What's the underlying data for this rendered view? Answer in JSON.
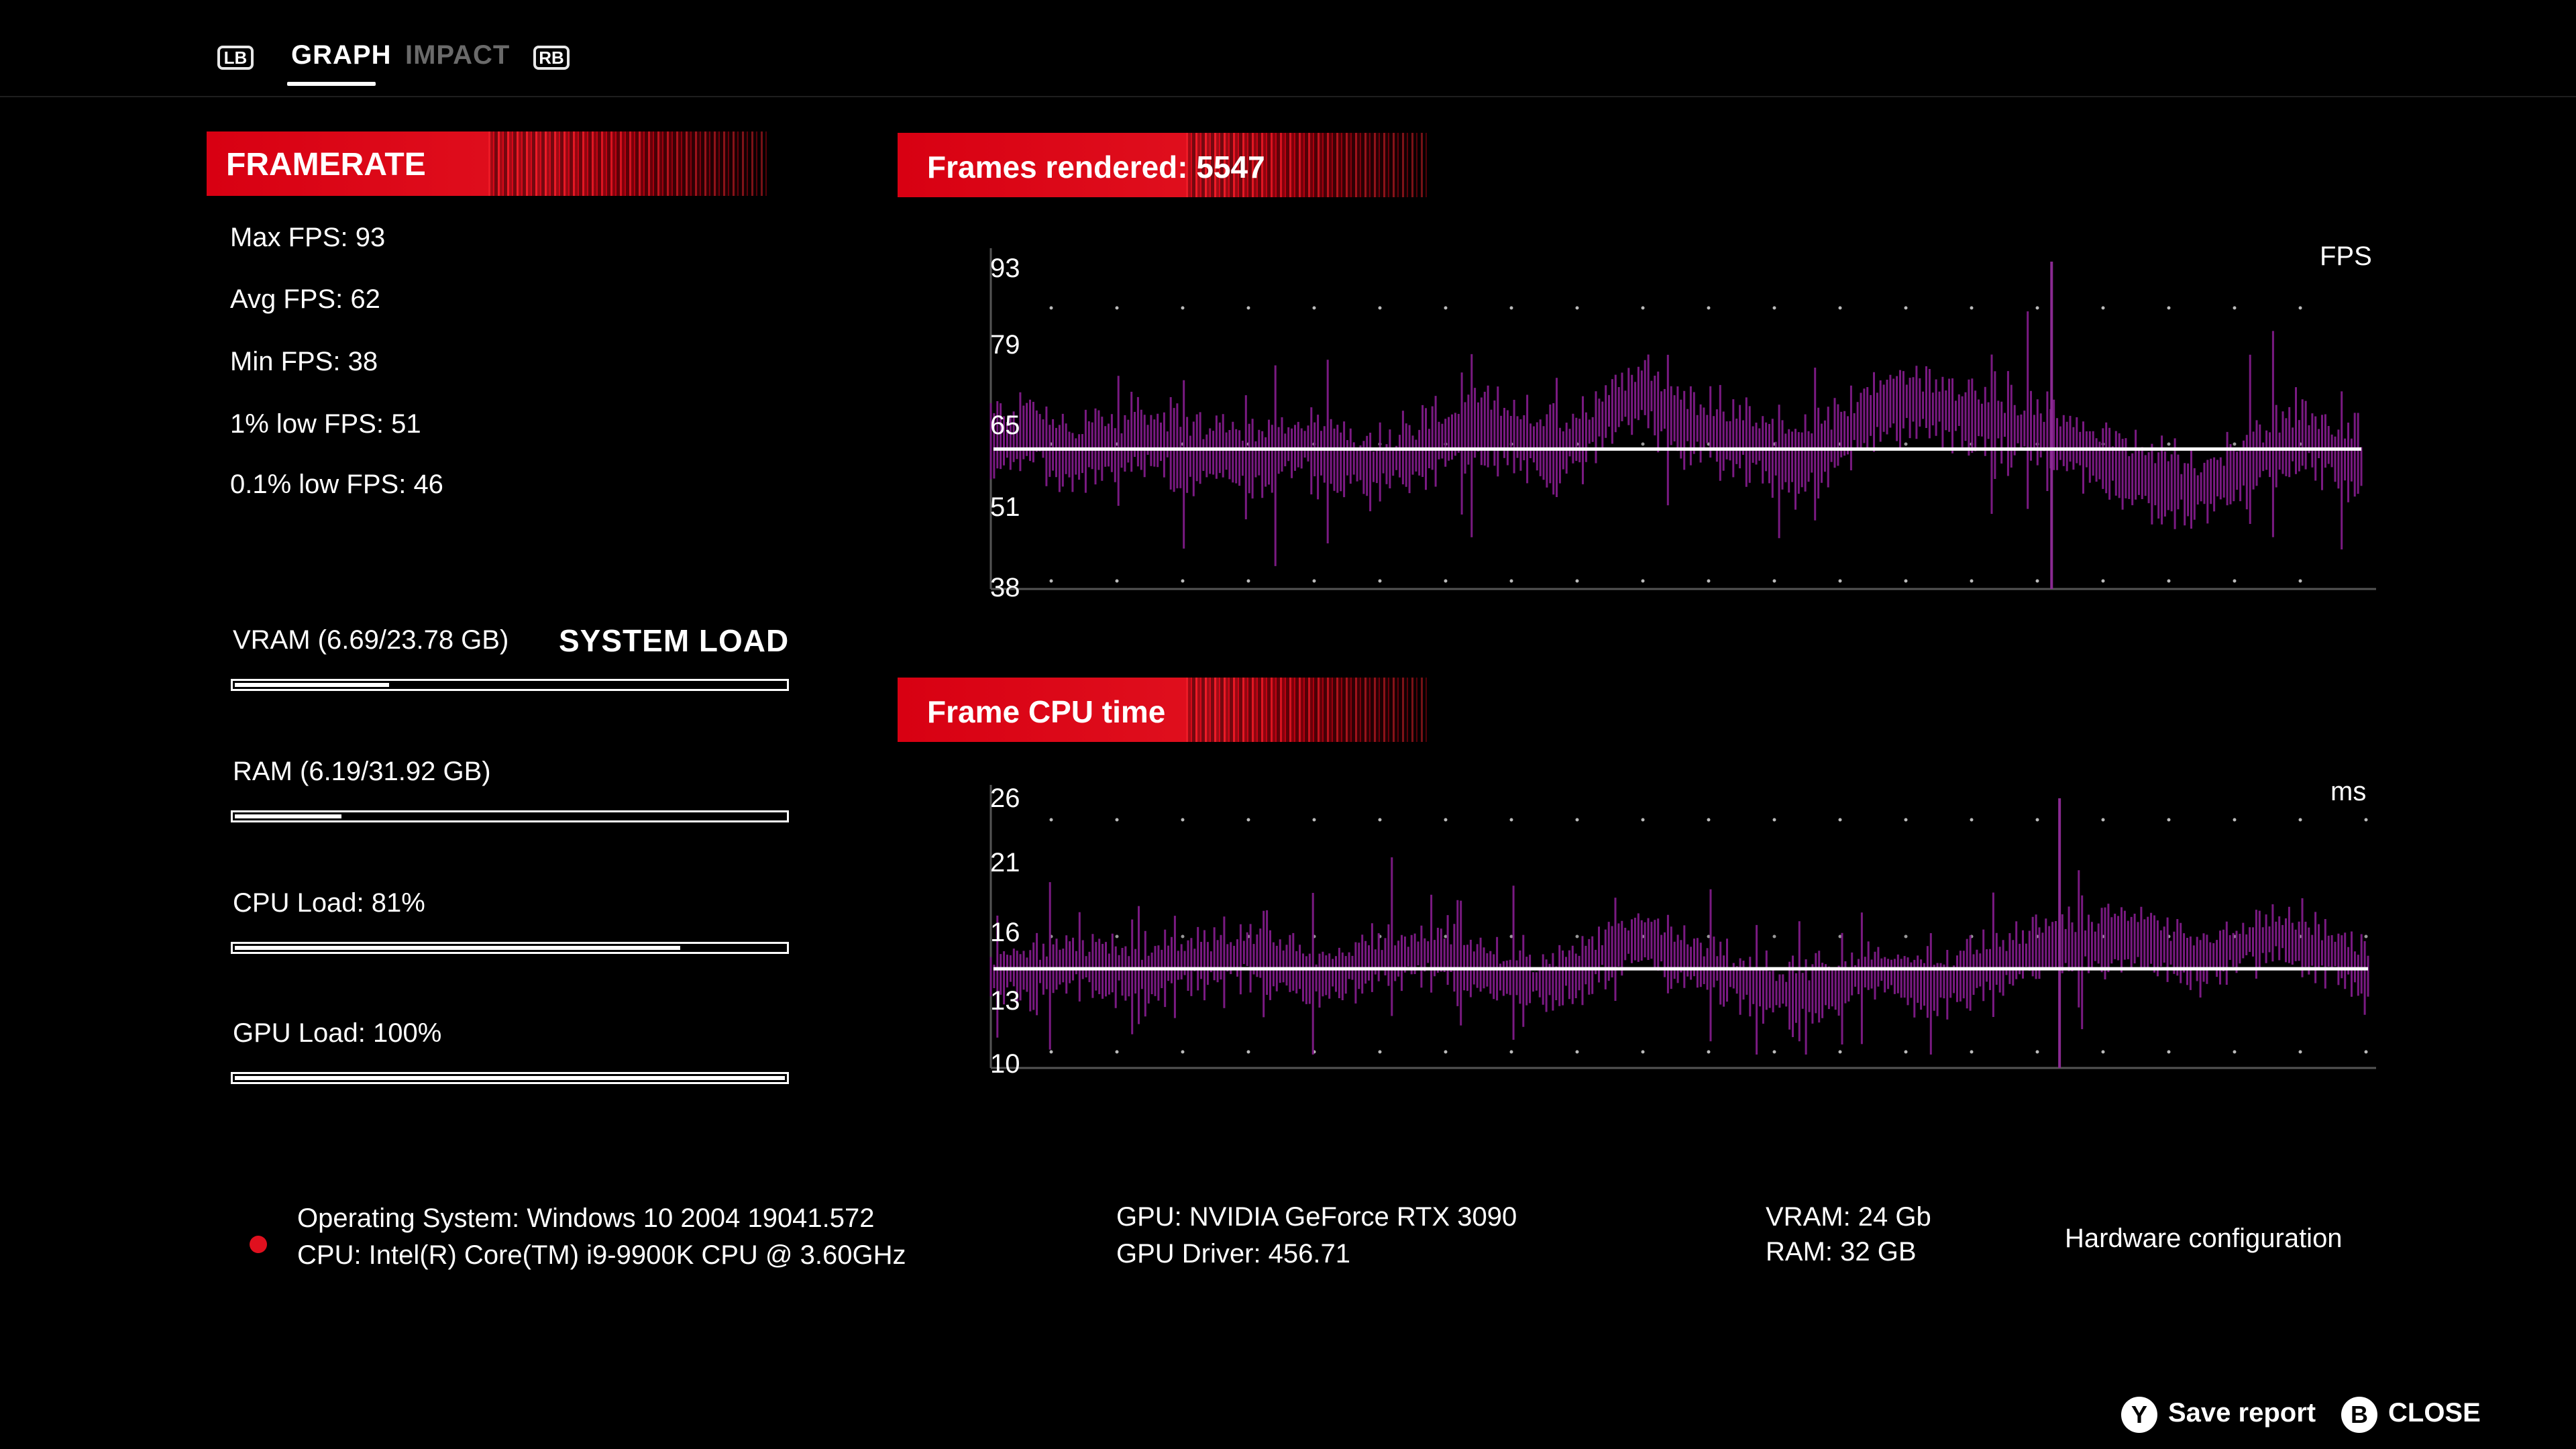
{
  "tabs": {
    "left_bumper": "LB",
    "right_bumper": "RB",
    "items": [
      {
        "label": "GRAPH",
        "active": true
      },
      {
        "label": "IMPACT",
        "active": false
      }
    ]
  },
  "framerate": {
    "title": "FRAMERATE",
    "stats": [
      "Max FPS: 93",
      "Avg FPS: 62",
      "Min FPS: 38",
      "1% low FPS: 51",
      "0.1% low FPS: 46"
    ]
  },
  "system_load": {
    "title": "SYSTEM LOAD",
    "items": [
      {
        "label": "VRAM (6.69/23.78 GB)",
        "fraction": 0.281
      },
      {
        "label": "RAM (6.19/31.92 GB)",
        "fraction": 0.194
      },
      {
        "label": "CPU Load: 81%",
        "fraction": 0.81
      },
      {
        "label": "GPU Load: 100%",
        "fraction": 1.0
      }
    ]
  },
  "colors": {
    "accent_red": "#e0101e",
    "series_purple": "#7a1a82",
    "average_line": "#ffffff"
  },
  "chart_data": [
    {
      "type": "line",
      "title": "Frames rendered: 5547",
      "unit": "FPS",
      "yticks": [
        93,
        79,
        65,
        51,
        38
      ],
      "ylim": [
        38,
        93
      ],
      "average": 62,
      "series": [
        {
          "values": [
            64,
            63,
            65,
            62,
            61,
            63,
            62,
            64,
            63,
            62,
            61,
            62,
            60,
            61,
            62,
            63,
            61,
            60,
            59,
            60,
            61,
            63,
            64,
            66,
            65,
            64,
            63,
            62,
            64,
            67,
            70,
            72,
            68,
            66,
            65,
            64,
            63,
            61,
            60,
            61,
            63,
            66,
            69,
            70,
            70,
            69,
            68,
            67,
            66,
            65,
            64,
            63,
            62,
            60,
            58,
            57,
            56,
            55,
            56,
            58,
            60,
            62,
            64,
            63,
            61,
            59
          ]
        }
      ]
    },
    {
      "type": "line",
      "title": "Frame CPU time",
      "unit": "ms",
      "yticks": [
        26,
        21,
        16,
        13,
        10
      ],
      "ylim": [
        10,
        26
      ],
      "average": 15.5,
      "series": [
        {
          "values": [
            15,
            15.5,
            15,
            15.5,
            16,
            15.5,
            15.5,
            15,
            15.5,
            16,
            16,
            16,
            16.5,
            16,
            15.5,
            15,
            15,
            15.5,
            16,
            16,
            16.5,
            16.5,
            16,
            15.5,
            15,
            15,
            14.5,
            15,
            15.5,
            16.5,
            17,
            17.5,
            16.5,
            16,
            15.5,
            15,
            14.5,
            14,
            14,
            14,
            14.5,
            15,
            15.5,
            15,
            14.5,
            14.5,
            15,
            15.5,
            16,
            16.5,
            17,
            17,
            17,
            17.5,
            17.5,
            17,
            16.5,
            16,
            16.5,
            17,
            17.5,
            17.5,
            17,
            16.5,
            16,
            15
          ]
        }
      ]
    }
  ],
  "hardware": {
    "os": "Operating System: Windows 10 2004 19041.572",
    "cpu": "CPU: Intel(R) Core(TM) i9-9900K CPU @ 3.60GHz",
    "gpu": "GPU: NVIDIA GeForce RTX 3090",
    "gpu_driver": "GPU Driver: 456.71",
    "vram": "VRAM: 24 Gb",
    "ram": "RAM: 32 GB",
    "title": "Hardware configuration"
  },
  "footer": {
    "save_key": "Y",
    "save_label": "Save report",
    "close_key": "B",
    "close_label": "CLOSE"
  }
}
